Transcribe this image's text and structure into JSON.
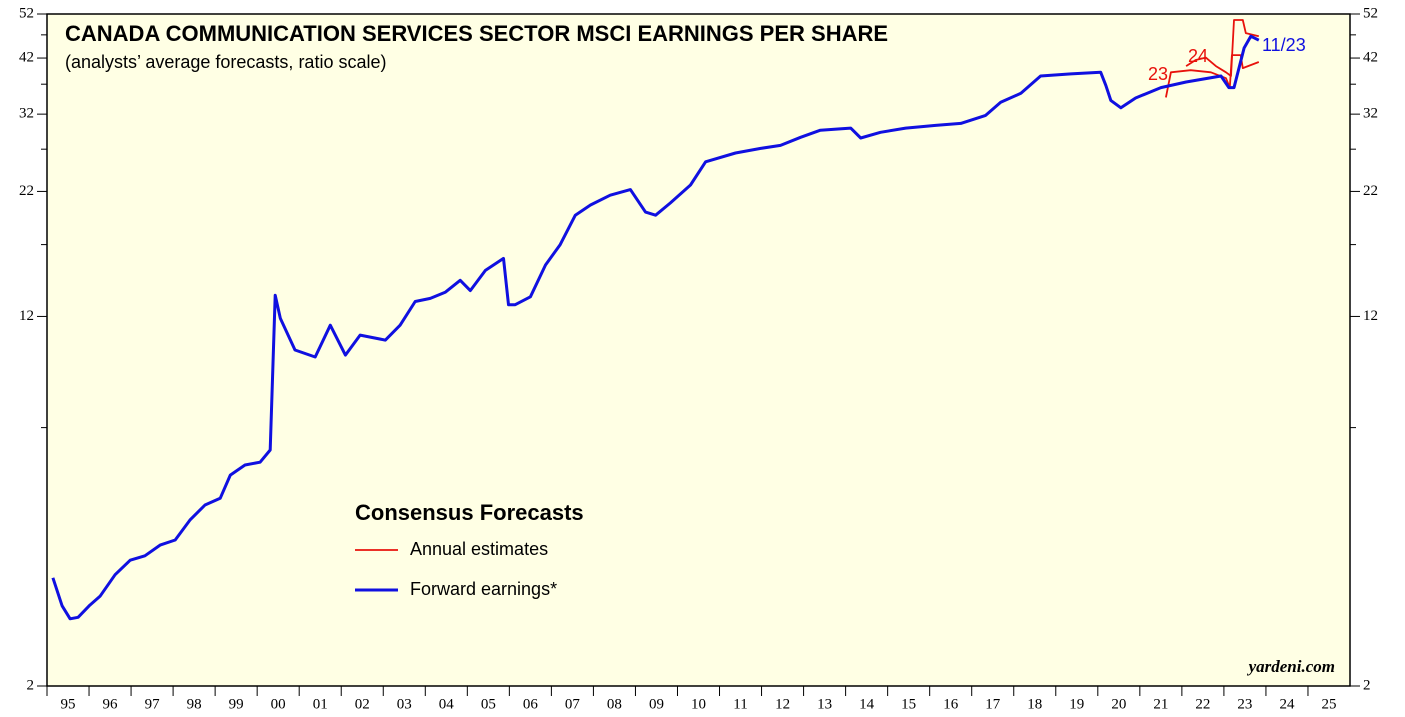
{
  "chart_data": {
    "type": "line",
    "title": "CANADA COMMUNICATION SERVICES SECTOR MSCI EARNINGS PER SHARE",
    "subtitle": "(analysts’ average forecasts, ratio scale)",
    "legend_title": "Consensus Forecasts",
    "source": "yardeni.com",
    "log_scale": true,
    "xlim": [
      1995,
      2026
    ],
    "ylim": [
      2,
      52
    ],
    "yticks": [
      2,
      12,
      22,
      32,
      42,
      52
    ],
    "minor_yticks": [
      7,
      17,
      27,
      37,
      47
    ],
    "xticks": [
      {
        "value": 1995,
        "label": "95"
      },
      {
        "value": 1996,
        "label": "96"
      },
      {
        "value": 1997,
        "label": "97"
      },
      {
        "value": 1998,
        "label": "98"
      },
      {
        "value": 1999,
        "label": "99"
      },
      {
        "value": 2000,
        "label": "00"
      },
      {
        "value": 2001,
        "label": "01"
      },
      {
        "value": 2002,
        "label": "02"
      },
      {
        "value": 2003,
        "label": "03"
      },
      {
        "value": 2004,
        "label": "04"
      },
      {
        "value": 2005,
        "label": "05"
      },
      {
        "value": 2006,
        "label": "06"
      },
      {
        "value": 2007,
        "label": "07"
      },
      {
        "value": 2008,
        "label": "08"
      },
      {
        "value": 2009,
        "label": "09"
      },
      {
        "value": 2010,
        "label": "10"
      },
      {
        "value": 2011,
        "label": "11"
      },
      {
        "value": 2012,
        "label": "12"
      },
      {
        "value": 2013,
        "label": "13"
      },
      {
        "value": 2014,
        "label": "14"
      },
      {
        "value": 2015,
        "label": "15"
      },
      {
        "value": 2016,
        "label": "16"
      },
      {
        "value": 2017,
        "label": "17"
      },
      {
        "value": 2018,
        "label": "18"
      },
      {
        "value": 2019,
        "label": "19"
      },
      {
        "value": 2020,
        "label": "20"
      },
      {
        "value": 2021,
        "label": "21"
      },
      {
        "value": 2022,
        "label": "22"
      },
      {
        "value": 2023,
        "label": "23"
      },
      {
        "value": 2024,
        "label": "24"
      },
      {
        "value": 2025,
        "label": "25"
      }
    ],
    "series": [
      {
        "name": "Annual estimates",
        "color": "#e8120c",
        "label": "23",
        "x": [
          2021.62,
          2021.74,
          2022.21,
          2022.69,
          2023.05,
          2023.14,
          2023.19,
          2023.4,
          2023.45,
          2023.83
        ],
        "values": [
          34.7,
          39.2,
          39.6,
          39.2,
          38.1,
          36.4,
          42.6,
          42.6,
          40.0,
          41.2
        ]
      },
      {
        "name": "Annual estimates",
        "color": "#e8120c",
        "label": "24",
        "legend": false,
        "x": [
          2022.1,
          2022.33,
          2022.57,
          2022.81,
          2023.05,
          2023.17,
          2023.24,
          2023.45,
          2023.52,
          2023.83
        ],
        "values": [
          40.4,
          41.6,
          42.1,
          40.4,
          39.2,
          38.5,
          50.5,
          50.5,
          47.4,
          46.7
        ]
      },
      {
        "name": "Forward earnings*",
        "color": "#1010e0",
        "label": "11/23",
        "x": [
          1995.14,
          1995.36,
          1995.55,
          1995.74,
          1996.02,
          1996.26,
          1996.62,
          1996.98,
          1997.33,
          1997.69,
          1998.05,
          1998.4,
          1998.76,
          1999.12,
          1999.36,
          1999.71,
          2000.07,
          2000.31,
          2000.43,
          2000.55,
          2000.9,
          2001.38,
          2001.74,
          2002.1,
          2002.45,
          2003.05,
          2003.4,
          2003.76,
          2004.12,
          2004.48,
          2004.83,
          2005.07,
          2005.43,
          2005.86,
          2005.98,
          2006.14,
          2006.5,
          2006.86,
          2007.21,
          2007.57,
          2007.93,
          2008.4,
          2008.88,
          2009.24,
          2009.48,
          2009.83,
          2010.31,
          2010.67,
          2011.38,
          2011.98,
          2012.45,
          2012.93,
          2013.4,
          2014.12,
          2014.36,
          2014.83,
          2015.43,
          2016.14,
          2016.74,
          2017.33,
          2017.69,
          2018.17,
          2018.64,
          2019.36,
          2020.07,
          2020.19,
          2020.31,
          2020.55,
          2020.9,
          2021.5,
          2022.1,
          2022.93,
          2023.12,
          2023.24,
          2023.48,
          2023.64,
          2023.83
        ],
        "values": [
          3.38,
          2.95,
          2.77,
          2.79,
          2.96,
          3.09,
          3.43,
          3.68,
          3.76,
          3.96,
          4.06,
          4.47,
          4.81,
          4.97,
          5.56,
          5.84,
          5.92,
          6.28,
          13.3,
          11.9,
          10.2,
          9.86,
          11.5,
          9.95,
          10.96,
          10.7,
          11.5,
          12.9,
          13.1,
          13.5,
          14.3,
          13.6,
          15.0,
          15.9,
          12.7,
          12.7,
          13.2,
          15.4,
          17.0,
          19.6,
          20.6,
          21.6,
          22.2,
          19.9,
          19.6,
          20.8,
          22.7,
          25.4,
          26.5,
          27.1,
          27.5,
          28.6,
          29.6,
          29.9,
          28.5,
          29.3,
          29.9,
          30.3,
          30.6,
          31.8,
          33.9,
          35.4,
          38.5,
          38.9,
          39.2,
          36.8,
          34.2,
          33.0,
          34.6,
          36.4,
          37.4,
          38.5,
          36.4,
          36.4,
          44.1,
          46.7,
          45.8
        ]
      }
    ]
  }
}
